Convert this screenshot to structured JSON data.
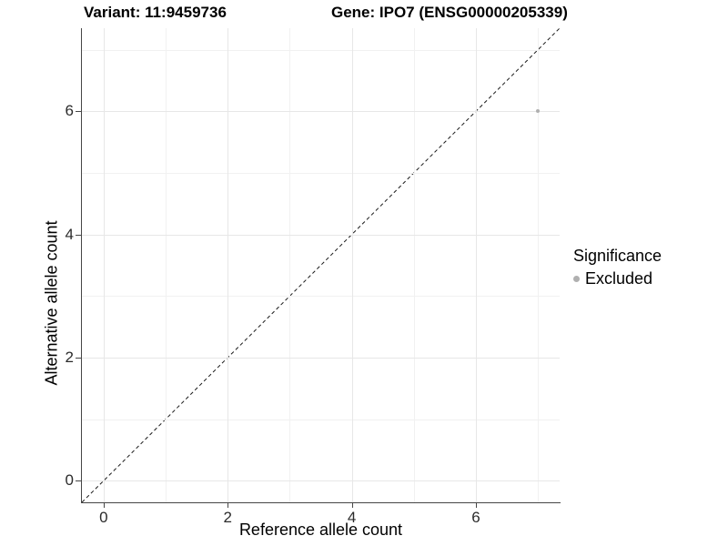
{
  "header": {
    "title_left": "Variant: 11:9459736",
    "title_right": "Gene: IPO7 (ENSG00000205339)"
  },
  "chart_data": {
    "type": "scatter",
    "title": "Variant: 11:9459736   Gene: IPO7 (ENSG00000205339)",
    "xlabel": "Reference allele count",
    "ylabel": "Alternative allele count",
    "xlim": [
      -0.35,
      7.35
    ],
    "ylim": [
      -0.35,
      7.35
    ],
    "x_ticks": [
      0,
      2,
      4,
      6
    ],
    "y_ticks": [
      0,
      2,
      4,
      6
    ],
    "grid": {
      "on": true,
      "major_at": [
        0,
        2,
        4,
        6
      ],
      "minor_at": [
        1,
        3,
        5,
        7
      ]
    },
    "identity_line": {
      "style": "dashed",
      "equation": "y = x",
      "color": "#1a1a1a"
    },
    "series": [
      {
        "name": "Excluded",
        "color": "#b0b0b0",
        "points": [
          [
            7,
            6
          ]
        ]
      }
    ],
    "legend": {
      "title": "Significance",
      "position": "right",
      "items": [
        {
          "label": "Excluded",
          "color": "#b0b0b0",
          "marker": "circle"
        }
      ]
    },
    "colors": {
      "grid_major": "#e7e7e7",
      "grid_minor": "#f1f1f1",
      "axis_line": "#464646",
      "tick_label": "#2b2b2b",
      "point": "#b0b0b0"
    }
  }
}
